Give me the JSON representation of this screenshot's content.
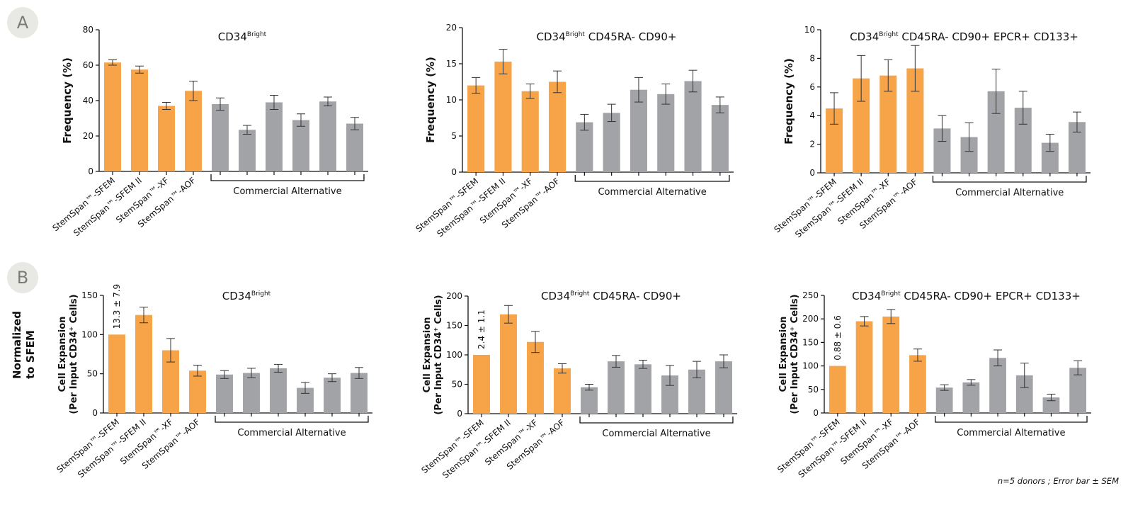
{
  "panel_labels": [
    "A",
    "B"
  ],
  "row_b_side_label": [
    "Normalized",
    "to SFEM"
  ],
  "footnote": "n=5 donors ; Error bar ± SEM",
  "colors": {
    "stemspan": "#f7a348",
    "commercial": "#a2a3a6",
    "axis": "#111111"
  },
  "bracket_label": "Commercial Alternative",
  "categories": [
    "StemSpan™-SFEM",
    "StemSpan™-SFEM II",
    "StemSpan™-XF",
    "StemSpan™-AOF",
    "",
    "",
    "",
    "",
    "",
    ""
  ],
  "chart_data": [
    {
      "type": "bar",
      "title": "CD34",
      "title_sup": "Bright",
      "title_rest": "",
      "ylabel": "Frequency (%)",
      "ylim": [
        0,
        80
      ],
      "yticks": [
        0,
        20,
        40,
        60,
        80
      ],
      "values": [
        61.5,
        57.5,
        37,
        45.5,
        38,
        23.5,
        39,
        29,
        39.5,
        27
      ],
      "errors": [
        1.5,
        2,
        2,
        5.5,
        3.5,
        2.5,
        4,
        3.5,
        2.5,
        3.5
      ]
    },
    {
      "type": "bar",
      "title": "CD34",
      "title_sup": "Bright",
      "title_rest": " CD45RA- CD90+",
      "ylabel": "Frequency (%)",
      "ylim": [
        0,
        20
      ],
      "yticks": [
        0,
        5,
        10,
        15,
        20
      ],
      "values": [
        12,
        15.3,
        11.2,
        12.5,
        6.9,
        8.2,
        11.4,
        10.8,
        12.6,
        9.3
      ],
      "errors": [
        1.1,
        1.7,
        1,
        1.5,
        1.1,
        1.2,
        1.7,
        1.4,
        1.5,
        1.1
      ]
    },
    {
      "type": "bar",
      "title": "CD34",
      "title_sup": "Bright",
      "title_rest": " CD45RA- CD90+ EPCR+ CD133+",
      "ylabel": "Frequency (%)",
      "ylim": [
        0,
        10
      ],
      "yticks": [
        0,
        2,
        4,
        6,
        8,
        10
      ],
      "values": [
        4.5,
        6.6,
        6.8,
        7.3,
        3.1,
        2.5,
        5.7,
        4.55,
        2.1,
        3.55
      ],
      "errors": [
        1.1,
        1.6,
        1.1,
        1.6,
        0.9,
        1,
        1.55,
        1.15,
        0.6,
        0.7
      ]
    },
    {
      "type": "bar",
      "title": "CD34",
      "title_sup": "Bright",
      "title_rest": "",
      "ylabel": "Cell Expansion",
      "ylabel2_pre": "(Per Input CD34",
      "ylabel2_sup": "+",
      "ylabel2_post": " Cells)",
      "ylim": [
        0,
        150
      ],
      "yticks": [
        0,
        50,
        100,
        150
      ],
      "values": [
        100,
        125,
        80,
        54,
        49,
        51,
        57,
        32,
        45,
        51
      ],
      "errors": [
        0,
        10,
        15,
        7,
        5,
        6,
        5,
        7,
        5,
        7
      ],
      "bar_annotation": "13.3 ± 7.9"
    },
    {
      "type": "bar",
      "title": "CD34",
      "title_sup": "Bright",
      "title_rest": " CD45RA- CD90+",
      "ylabel": "Cell Expansion",
      "ylabel2_pre": "(Per Input CD34",
      "ylabel2_sup": "+",
      "ylabel2_post": " Cells)",
      "ylim": [
        0,
        200
      ],
      "yticks": [
        0,
        50,
        100,
        150,
        200
      ],
      "values": [
        100,
        169,
        122,
        77,
        45,
        89,
        84,
        65,
        75,
        89
      ],
      "errors": [
        0,
        15,
        18,
        8,
        5,
        10,
        7,
        17,
        14,
        11
      ],
      "bar_annotation": "2.4 ± 1.1"
    },
    {
      "type": "bar",
      "title": "CD34",
      "title_sup": "Bright",
      "title_rest": " CD45RA- CD90+ EPCR+ CD133+",
      "ylabel": "Cell Expansion",
      "ylabel2_pre": "(Per Input CD34",
      "ylabel2_sup": "+",
      "ylabel2_post": " Cells)",
      "ylim": [
        0,
        250
      ],
      "yticks": [
        0,
        50,
        100,
        150,
        200,
        250
      ],
      "values": [
        100,
        195,
        205,
        123,
        54,
        65,
        117,
        80,
        33,
        96
      ],
      "errors": [
        0,
        10,
        15,
        13,
        6,
        6,
        17,
        26,
        7,
        15
      ],
      "bar_annotation": "0.88 ± 0.6"
    }
  ]
}
